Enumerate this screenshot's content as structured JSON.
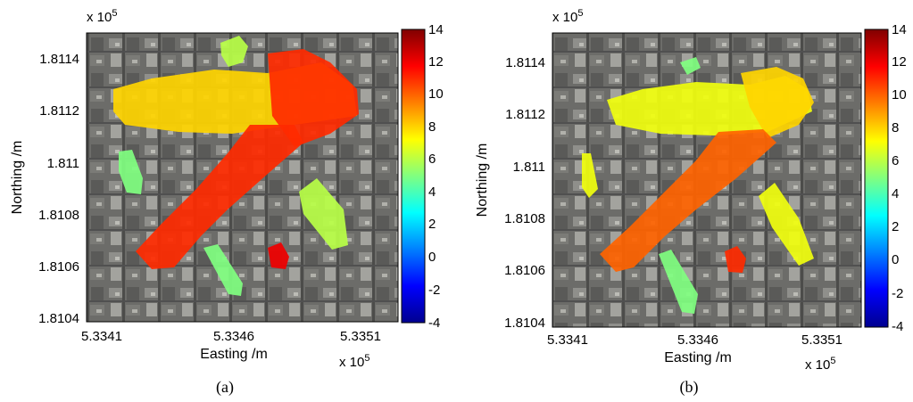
{
  "chart_data": [
    {
      "type": "heatmap",
      "caption": "(a)",
      "xlabel": "Easting /m",
      "ylabel": "Northing /m",
      "x_exponent_label": "x 10",
      "x_exponent_power": "5",
      "y_exponent_label": "x 10",
      "y_exponent_power": "5",
      "x_ticks": [
        "5.3341",
        "5.3346",
        "5.3351"
      ],
      "x_tick_values": [
        533410,
        533460,
        533510
      ],
      "y_ticks": [
        "1.8114",
        "1.8112",
        "1.811",
        "1.8108",
        "1.8106",
        "1.8104"
      ],
      "y_tick_values": [
        181140,
        181120,
        181100,
        181080,
        181060,
        181040
      ],
      "xlim": [
        533395,
        533515
      ],
      "ylim": [
        181036,
        181150
      ],
      "colorbar_ticks": [
        "14",
        "12",
        "10",
        "8",
        "6",
        "4",
        "2",
        "0",
        "-2",
        "-4"
      ],
      "colorbar_range": [
        -4,
        14
      ],
      "background": "aerial photograph",
      "colormap": "jet",
      "regions": [
        {
          "name": "main-diagonal-street",
          "value": 11
        },
        {
          "name": "upper-cross-street",
          "value": 8
        },
        {
          "name": "upper-right-block",
          "value": 11
        },
        {
          "name": "top-left-blob",
          "value": 6
        },
        {
          "name": "left-small-strip",
          "value": 5
        },
        {
          "name": "lower-right-patch",
          "value": 6
        },
        {
          "name": "lower-middle-strip",
          "value": 5
        },
        {
          "name": "small-red-spot",
          "value": 12
        }
      ]
    },
    {
      "type": "heatmap",
      "caption": "(b)",
      "xlabel": "Easting /m",
      "ylabel": "Northing /m",
      "x_exponent_label": "x 10",
      "x_exponent_power": "5",
      "y_exponent_label": "x 10",
      "y_exponent_power": "5",
      "x_ticks": [
        "5.3341",
        "5.3346",
        "5.3351"
      ],
      "x_tick_values": [
        533410,
        533460,
        533510
      ],
      "y_ticks": [
        "1.8114",
        "1.8112",
        "1.811",
        "1.8108",
        "1.8106",
        "1.8104"
      ],
      "y_tick_values": [
        181140,
        181120,
        181100,
        181080,
        181060,
        181040
      ],
      "xlim": [
        533395,
        533515
      ],
      "ylim": [
        181036,
        181150
      ],
      "colorbar_ticks": [
        "14",
        "12",
        "10",
        "8",
        "6",
        "4",
        "2",
        "0",
        "-2",
        "-4"
      ],
      "colorbar_range": [
        -4,
        14
      ],
      "background": "aerial photograph",
      "colormap": "jet",
      "regions": [
        {
          "name": "main-diagonal-street",
          "value": 10
        },
        {
          "name": "upper-cross-street",
          "value": 7
        },
        {
          "name": "upper-right-block",
          "value": 8
        },
        {
          "name": "top-left-blob",
          "value": 5
        },
        {
          "name": "left-small-strip",
          "value": 7
        },
        {
          "name": "lower-right-patch",
          "value": 7
        },
        {
          "name": "lower-middle-strip",
          "value": 5
        },
        {
          "name": "small-red-spot",
          "value": 11
        }
      ]
    }
  ]
}
